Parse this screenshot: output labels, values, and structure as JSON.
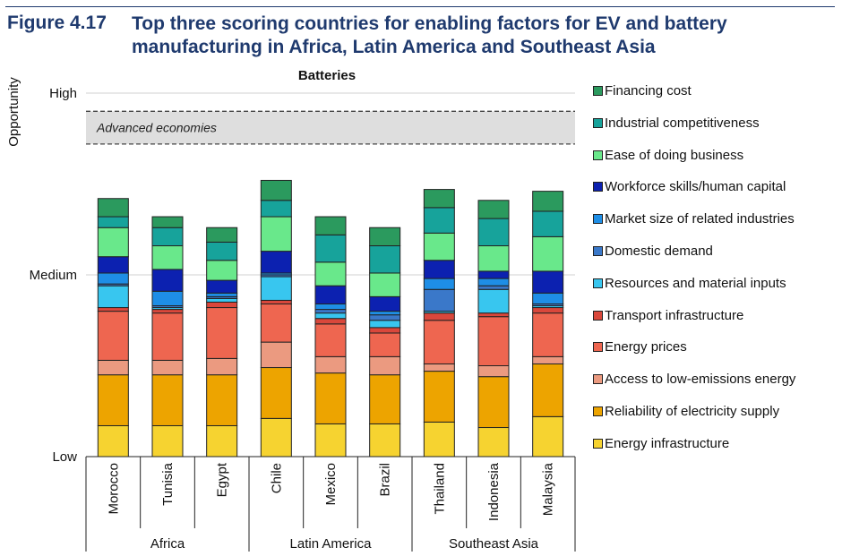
{
  "figure": {
    "number": "Figure 4.17",
    "title": "Top three scoring countries for enabling factors for EV and battery manufacturing in Africa, Latin America and Southeast Asia"
  },
  "chart_data": {
    "type": "bar",
    "stacked": true,
    "title": "Batteries",
    "ylabel": "Opportunity",
    "y_tick_labels": [
      "Low",
      "Medium",
      "High"
    ],
    "y_tick_values": [
      0,
      1,
      2
    ],
    "ylim": [
      0,
      2
    ],
    "reference_band": {
      "label": "Advanced economies",
      "range": [
        1.72,
        1.9
      ]
    },
    "categories": [
      "Morocco",
      "Tunisia",
      "Egypt",
      "Chile",
      "Mexico",
      "Brazil",
      "Thailand",
      "Indonesia",
      "Malaysia"
    ],
    "groups": [
      {
        "name": "Africa",
        "categories": [
          "Morocco",
          "Tunisia",
          "Egypt"
        ]
      },
      {
        "name": "Latin America",
        "categories": [
          "Chile",
          "Mexico",
          "Brazil"
        ]
      },
      {
        "name": "Southeast Asia",
        "categories": [
          "Thailand",
          "Indonesia",
          "Malaysia"
        ]
      }
    ],
    "series": [
      {
        "name": "Energy infrastructure",
        "color": "#f6d330",
        "values": [
          0.17,
          0.17,
          0.17,
          0.21,
          0.18,
          0.18,
          0.19,
          0.16,
          0.22
        ]
      },
      {
        "name": "Reliability of electricity supply",
        "color": "#eda400",
        "values": [
          0.28,
          0.28,
          0.28,
          0.28,
          0.28,
          0.27,
          0.28,
          0.28,
          0.29
        ]
      },
      {
        "name": "Access to low-emissions energy",
        "color": "#eb9a80",
        "values": [
          0.08,
          0.08,
          0.09,
          0.14,
          0.09,
          0.1,
          0.04,
          0.06,
          0.04
        ]
      },
      {
        "name": "Energy prices",
        "color": "#ee6650",
        "values": [
          0.27,
          0.26,
          0.28,
          0.21,
          0.18,
          0.13,
          0.24,
          0.27,
          0.24
        ]
      },
      {
        "name": "Transport infrastructure",
        "color": "#d9473b",
        "values": [
          0.02,
          0.02,
          0.03,
          0.02,
          0.03,
          0.03,
          0.04,
          0.02,
          0.03
        ]
      },
      {
        "name": "Resources and material inputs",
        "color": "#38c6ef",
        "values": [
          0.12,
          0.01,
          0.02,
          0.13,
          0.03,
          0.04,
          0.01,
          0.13,
          0.01
        ]
      },
      {
        "name": "Domestic demand",
        "color": "#3a78c9",
        "values": [
          0.01,
          0.01,
          0.01,
          0.01,
          0.02,
          0.03,
          0.12,
          0.02,
          0.01
        ]
      },
      {
        "name": "Market size of related industries",
        "color": "#1e8ee6",
        "values": [
          0.06,
          0.08,
          0.02,
          0.01,
          0.03,
          0.02,
          0.06,
          0.04,
          0.06
        ]
      },
      {
        "name": "Workforce skills/human capital",
        "color": "#0c21b0",
        "values": [
          0.09,
          0.12,
          0.07,
          0.12,
          0.1,
          0.08,
          0.1,
          0.04,
          0.12
        ]
      },
      {
        "name": "Ease of doing business",
        "color": "#69e88b",
        "values": [
          0.16,
          0.13,
          0.11,
          0.19,
          0.13,
          0.13,
          0.15,
          0.14,
          0.19
        ]
      },
      {
        "name": "Industrial competitiveness",
        "color": "#17a39b",
        "values": [
          0.06,
          0.1,
          0.1,
          0.09,
          0.15,
          0.15,
          0.14,
          0.15,
          0.14
        ]
      },
      {
        "name": "Financing cost",
        "color": "#2b9a5e",
        "values": [
          0.1,
          0.06,
          0.08,
          0.11,
          0.1,
          0.1,
          0.1,
          0.1,
          0.11
        ]
      }
    ]
  }
}
